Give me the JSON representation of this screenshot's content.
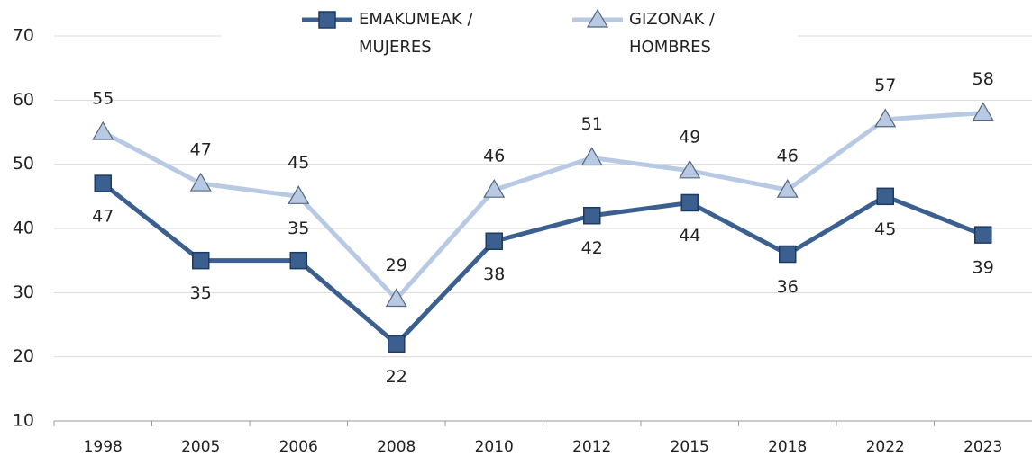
{
  "chart_data": {
    "type": "line",
    "categories": [
      "1998",
      "2005",
      "2006",
      "2008",
      "2010",
      "2012",
      "2015",
      "2018",
      "2022",
      "2023"
    ],
    "series": [
      {
        "name": "EMAKUMEAK / MUJERES",
        "color": "#3b5f8f",
        "marker": "square",
        "values": [
          47,
          35,
          35,
          22,
          38,
          42,
          44,
          36,
          45,
          39
        ]
      },
      {
        "name": "GIZONAK / HOMBRES",
        "color": "#b8cae3",
        "marker": "triangle",
        "values": [
          55,
          47,
          45,
          29,
          46,
          51,
          49,
          46,
          57,
          58
        ]
      }
    ],
    "ylim": [
      10,
      70
    ],
    "yticks": [
      10,
      20,
      30,
      40,
      50,
      60,
      70
    ],
    "grid": true,
    "legend": "top"
  }
}
